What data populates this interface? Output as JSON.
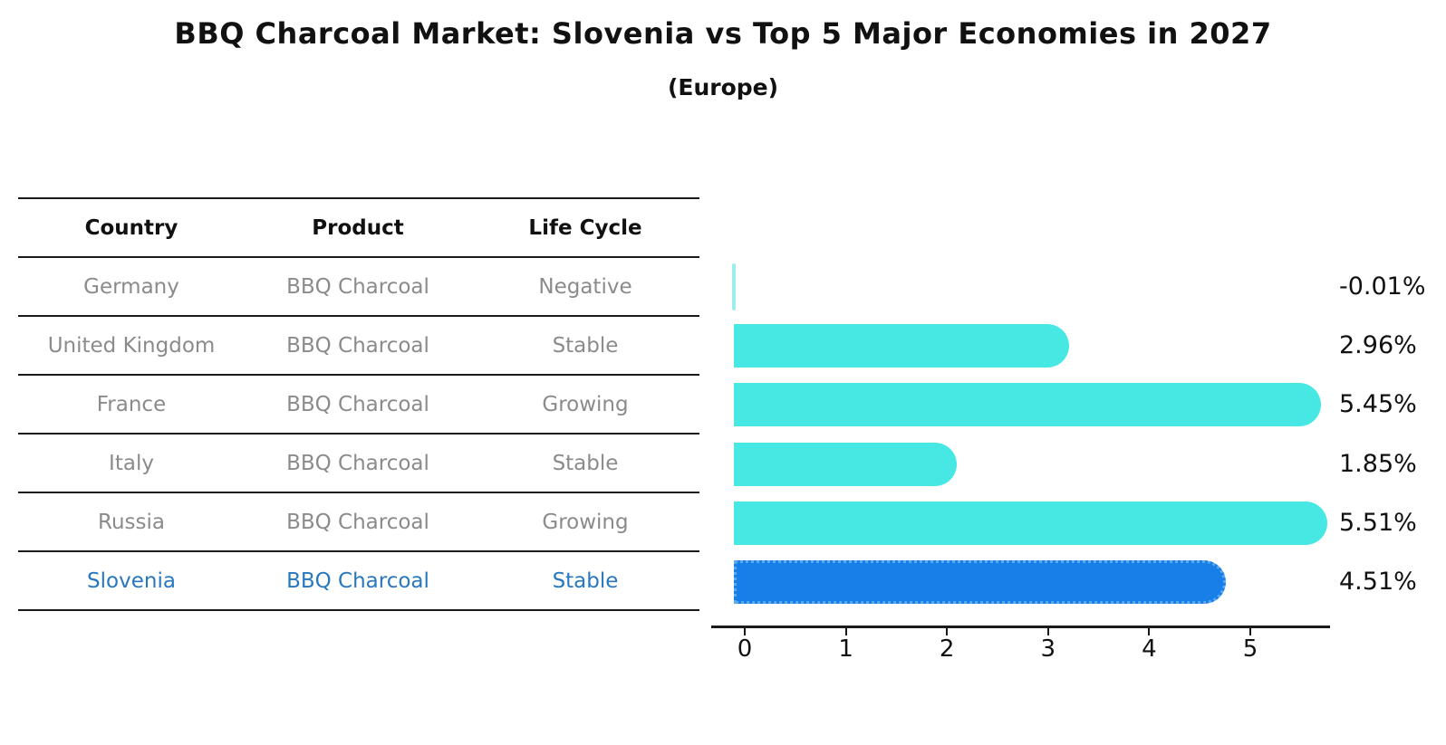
{
  "header": {
    "title": "BBQ Charcoal Market: Slovenia vs Top 5 Major Economies in 2027",
    "subtitle": "(Europe)"
  },
  "table": {
    "columns": [
      "Country",
      "Product",
      "Life Cycle"
    ],
    "rows": [
      {
        "country": "Germany",
        "product": "BBQ Charcoal",
        "life_cycle": "Negative",
        "highlight": false
      },
      {
        "country": "United Kingdom",
        "product": "BBQ Charcoal",
        "life_cycle": "Stable",
        "highlight": false
      },
      {
        "country": "France",
        "product": "BBQ Charcoal",
        "life_cycle": "Growing",
        "highlight": false
      },
      {
        "country": "Italy",
        "product": "BBQ Charcoal",
        "life_cycle": "Stable",
        "highlight": false
      },
      {
        "country": "Russia",
        "product": "BBQ Charcoal",
        "life_cycle": "Growing",
        "highlight": false
      },
      {
        "country": "Slovenia",
        "product": "BBQ Charcoal",
        "life_cycle": "Stable",
        "highlight": true
      }
    ]
  },
  "chart_data": {
    "type": "bar",
    "orientation": "horizontal",
    "title": "BBQ Charcoal Market: Slovenia vs Top 5 Major Economies in 2027 (Europe)",
    "categories": [
      "Germany",
      "United Kingdom",
      "France",
      "Italy",
      "Russia",
      "Slovenia"
    ],
    "values": [
      -0.01,
      2.96,
      5.45,
      1.85,
      5.51,
      4.51
    ],
    "value_labels": [
      "-0.01%",
      "2.96%",
      "5.45%",
      "1.85%",
      "5.51%",
      "4.51%"
    ],
    "xlabel": "",
    "ylabel": "",
    "xticks": [
      0,
      1,
      2,
      3,
      4,
      5
    ],
    "xlim": [
      0,
      5.8
    ],
    "grid": false,
    "legend": "none",
    "bar_color": "#47e8e4",
    "negative_bar_color": "#9beeec",
    "highlight_index": 5,
    "highlight_color": "#187ee8",
    "highlight_border_color": "#5ba9f0"
  }
}
